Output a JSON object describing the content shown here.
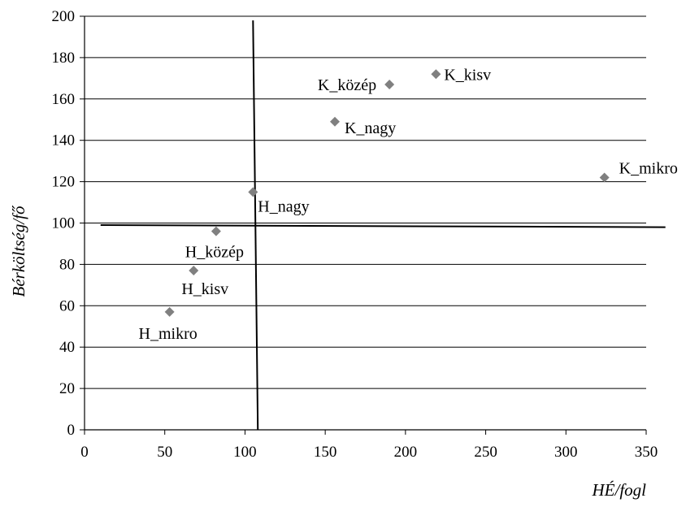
{
  "chart_data": {
    "type": "scatter",
    "title": "",
    "xlabel": "HÉ/fogl",
    "ylabel": "Bérköltség/fő",
    "xlim": [
      0,
      350
    ],
    "ylim": [
      0,
      200
    ],
    "x_ticks": [
      0,
      50,
      100,
      150,
      200,
      250,
      300,
      350
    ],
    "y_ticks": [
      0,
      20,
      40,
      60,
      80,
      100,
      120,
      140,
      160,
      180,
      200
    ],
    "grid": "horizontal",
    "legend": "none",
    "marker": "diamond",
    "marker_color": "#808080",
    "points": [
      {
        "label": "K_kisv",
        "x": 219,
        "y": 172
      },
      {
        "label": "K_közép",
        "x": 190,
        "y": 167
      },
      {
        "label": "K_nagy",
        "x": 156,
        "y": 149
      },
      {
        "label": "K_mikro",
        "x": 324,
        "y": 122
      },
      {
        "label": "H_nagy",
        "x": 105,
        "y": 115
      },
      {
        "label": "H_közép",
        "x": 82,
        "y": 96
      },
      {
        "label": "H_kisv",
        "x": 68,
        "y": 77
      },
      {
        "label": "H_mikro",
        "x": 53,
        "y": 57
      }
    ],
    "reference_lines": [
      {
        "orientation": "vertical",
        "x_start": 105,
        "y_start": 198,
        "x_end": 108,
        "y_end": 0
      },
      {
        "orientation": "horizontal",
        "x_start": 10,
        "y_start": 99,
        "x_end": 362,
        "y_end": 98
      }
    ]
  }
}
